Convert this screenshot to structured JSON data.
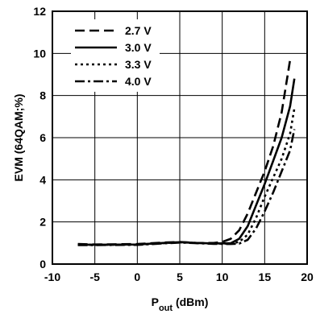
{
  "chart_data": {
    "type": "line",
    "xlabel_main": "P",
    "xlabel_sub": "out",
    "xlabel_unit": " (dBm)",
    "ylabel": "EVM (64QAM;%)",
    "xlim": [
      -10,
      20
    ],
    "ylim": [
      0,
      12
    ],
    "xticks": [
      -10,
      -5,
      0,
      5,
      10,
      15,
      20
    ],
    "yticks": [
      0,
      2,
      4,
      6,
      8,
      10,
      12
    ],
    "grid": true,
    "legend_position": "top-left",
    "series": [
      {
        "name": "2.7 V",
        "dash": "12 6",
        "points": [
          [
            -7,
            0.95
          ],
          [
            -5,
            0.93
          ],
          [
            0,
            0.95
          ],
          [
            3,
            1.02
          ],
          [
            5,
            1.05
          ],
          [
            7,
            1.0
          ],
          [
            9,
            1.0
          ],
          [
            10,
            1.05
          ],
          [
            11,
            1.2
          ],
          [
            12,
            1.6
          ],
          [
            13,
            2.4
          ],
          [
            14,
            3.4
          ],
          [
            15,
            4.4
          ],
          [
            16,
            5.6
          ],
          [
            17,
            7.2
          ],
          [
            18,
            9.7
          ]
        ]
      },
      {
        "name": "3.0 V",
        "dash": "",
        "points": [
          [
            -7,
            0.92
          ],
          [
            -5,
            0.92
          ],
          [
            0,
            0.93
          ],
          [
            3,
            1.0
          ],
          [
            5,
            1.04
          ],
          [
            7,
            1.0
          ],
          [
            9,
            0.98
          ],
          [
            11,
            0.99
          ],
          [
            12,
            1.2
          ],
          [
            13,
            1.8
          ],
          [
            14,
            2.8
          ],
          [
            15,
            3.8
          ],
          [
            16,
            4.9
          ],
          [
            17,
            6.0
          ],
          [
            18,
            7.5
          ],
          [
            18.5,
            8.8
          ]
        ]
      },
      {
        "name": "3.3 V",
        "dash": "3 4",
        "points": [
          [
            -7,
            0.92
          ],
          [
            -5,
            0.91
          ],
          [
            0,
            0.92
          ],
          [
            3,
            0.99
          ],
          [
            5,
            1.03
          ],
          [
            7,
            1.0
          ],
          [
            9,
            0.97
          ],
          [
            11,
            0.97
          ],
          [
            12,
            1.05
          ],
          [
            13,
            1.4
          ],
          [
            14,
            2.2
          ],
          [
            15,
            3.2
          ],
          [
            16,
            4.1
          ],
          [
            17,
            5.0
          ],
          [
            18,
            6.2
          ],
          [
            18.5,
            7.4
          ]
        ]
      },
      {
        "name": "4.0 V",
        "dash": "12 4 3 4",
        "points": [
          [
            -7,
            0.9
          ],
          [
            -5,
            0.9
          ],
          [
            0,
            0.91
          ],
          [
            3,
            0.98
          ],
          [
            5,
            1.02
          ],
          [
            7,
            0.99
          ],
          [
            9,
            0.96
          ],
          [
            11,
            0.95
          ],
          [
            12,
            0.97
          ],
          [
            13,
            1.15
          ],
          [
            14,
            1.7
          ],
          [
            15,
            2.5
          ],
          [
            16,
            3.4
          ],
          [
            17,
            4.4
          ],
          [
            18,
            5.4
          ],
          [
            18.5,
            6.4
          ]
        ]
      }
    ]
  }
}
